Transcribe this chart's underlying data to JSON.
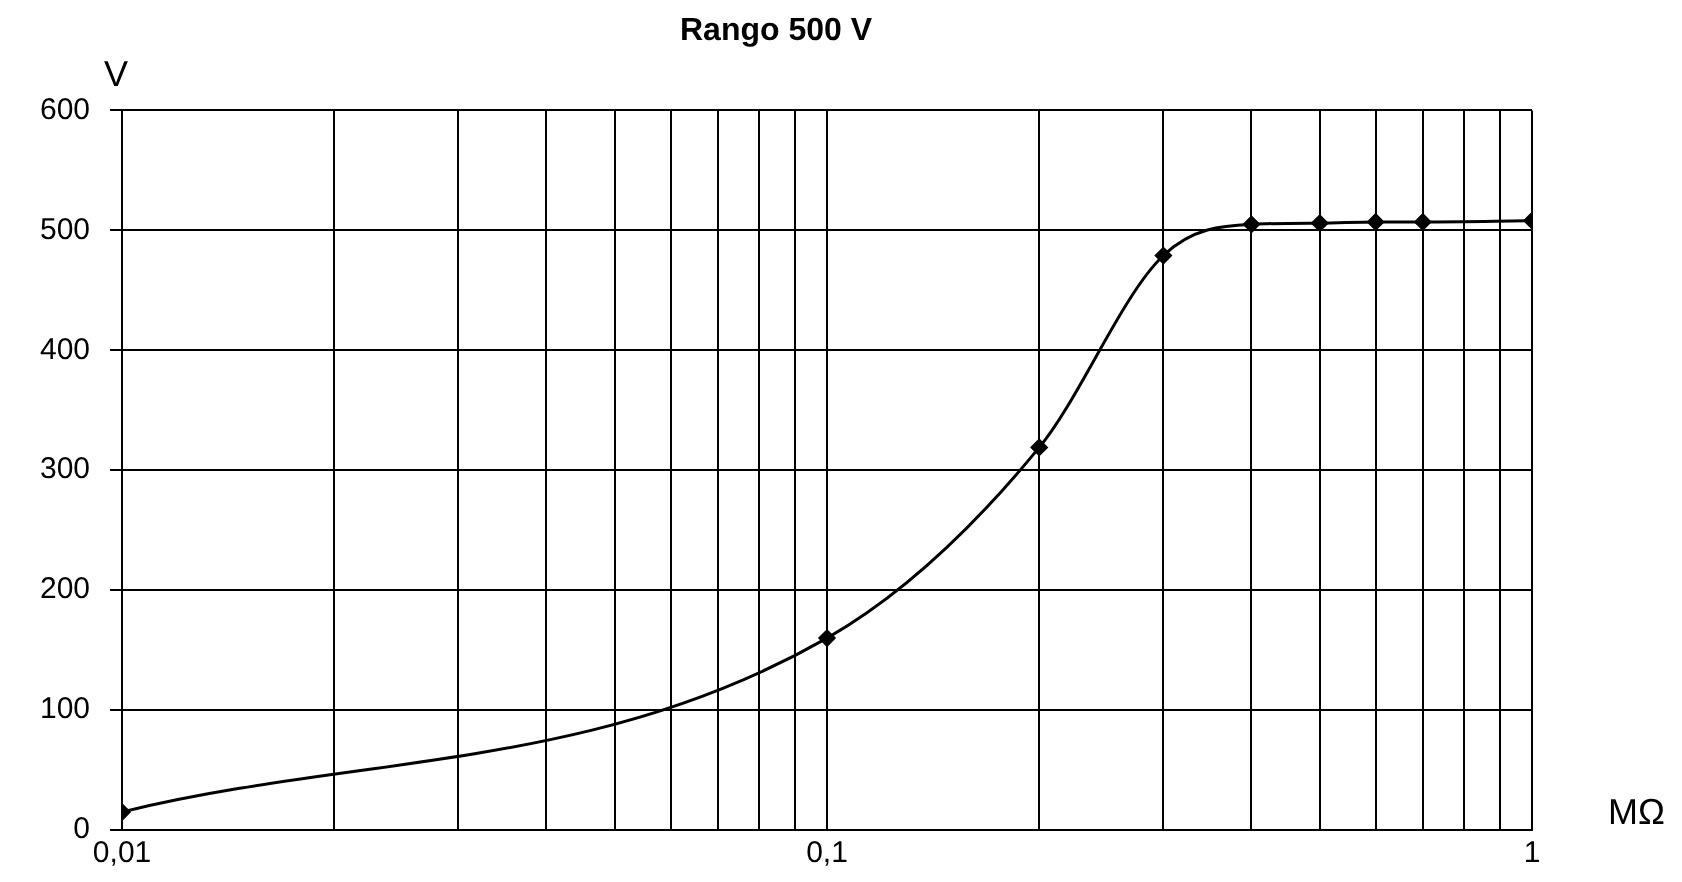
{
  "chart_data": {
    "type": "line",
    "title": "Rango 500 V",
    "xlabel": "MΩ",
    "ylabel": "V",
    "x": [
      0.01,
      0.1,
      0.2,
      0.3,
      0.4,
      0.5,
      0.6,
      0.7,
      1
    ],
    "series": [
      {
        "color": "#000000",
        "values": [
          15,
          160,
          319,
          479,
          505,
          506,
          507,
          507,
          508
        ]
      }
    ],
    "log": "x",
    "xlim": [
      0.01,
      1
    ],
    "xticks": [
      {
        "value": 0.01,
        "label": "0,01"
      },
      {
        "value": 0.02,
        "label": null
      },
      {
        "value": 0.03,
        "label": null
      },
      {
        "value": 0.04,
        "label": null
      },
      {
        "value": 0.05,
        "label": null
      },
      {
        "value": 0.06,
        "label": null
      },
      {
        "value": 0.07,
        "label": null
      },
      {
        "value": 0.08,
        "label": null
      },
      {
        "value": 0.09,
        "label": null
      },
      {
        "value": 0.1,
        "label": "0,1"
      },
      {
        "value": 0.2,
        "label": null
      },
      {
        "value": 0.3,
        "label": null
      },
      {
        "value": 0.4,
        "label": null
      },
      {
        "value": 0.5,
        "label": null
      },
      {
        "value": 0.6,
        "label": null
      },
      {
        "value": 0.7,
        "label": null
      },
      {
        "value": 0.8,
        "label": null
      },
      {
        "value": 0.9,
        "label": null
      },
      {
        "value": 1,
        "label": "1"
      }
    ],
    "ylim": [
      0,
      600
    ],
    "yticks": [
      0,
      100,
      200,
      300,
      400,
      500,
      600
    ],
    "grid": true,
    "legend": false,
    "marker": "diamond",
    "line_style": "solid"
  }
}
